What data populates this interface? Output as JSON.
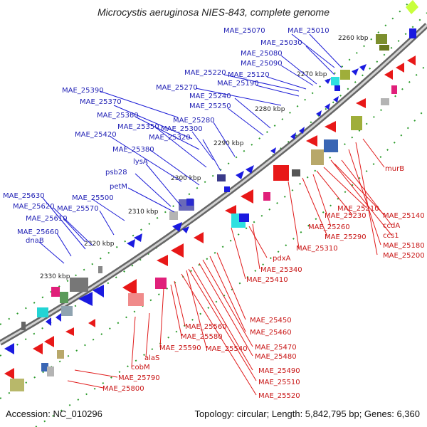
{
  "title": "Microcystis aeruginosa NIES-843, complete genome",
  "footer": {
    "accession": "Accession: NC_010296",
    "topology": "Topology: circular; Length: 5,842,795 bp; Genes: 6,360"
  },
  "ticks": [
    "2260 kbp",
    "2270 kbp",
    "2280 kbp",
    "2290 kbp",
    "2300 kbp",
    "2310 kbp",
    "2320 kbp",
    "2330 kbp"
  ],
  "labels_blue": [
    "MAE_25070",
    "MAE_25010",
    "MAE_25030",
    "MAE_25080",
    "MAE_25090",
    "MAE_25220",
    "MAE_25120",
    "MAE_25270",
    "MAE_25190",
    "MAE_25390",
    "MAE_25240",
    "MAE_25370",
    "MAE_25250",
    "MAE_25360",
    "MAE_25280",
    "MAE_25350",
    "MAE_25300",
    "MAE_25420",
    "MAE_25320",
    "MAE_25380",
    "lysA",
    "psb28",
    "petM",
    "MAE_25630",
    "MAE_25500",
    "MAE_25620",
    "MAE_25570",
    "MAE_25610",
    "MAE_25660",
    "dnaB"
  ],
  "labels_red": [
    "murB",
    "MAE_25210",
    "MAE_25140",
    "MAE_25230",
    "ccdA",
    "MAE_25260",
    "ccs1",
    "MAE_25290",
    "MAE_25180",
    "MAE_25310",
    "MAE_25200",
    "pdxA",
    "MAE_25340",
    "MAE_25410",
    "MAE_25450",
    "MAE_25460",
    "MAE_25560",
    "MAE_25580",
    "MAE_25470",
    "MAE_25540",
    "MAE_25590",
    "MAE_25480",
    "alaS",
    "cobM",
    "MAE_25490",
    "MAE_25510",
    "MAE_25790",
    "MAE_25520",
    "MAE_25800"
  ],
  "colors": {
    "blue_gene": "#1010e6",
    "red_gene": "#e81818",
    "leader_blue": "#1a1ad6",
    "leader_red": "#e01a1a",
    "backbone": "#9a9a9a",
    "tick_dot": "#2a9a2a"
  }
}
